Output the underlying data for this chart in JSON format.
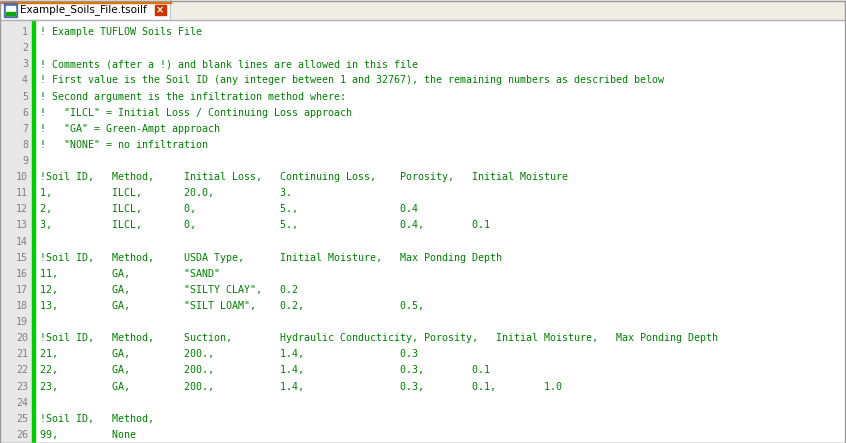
{
  "tab_title": "Example_Soils_File.tsoilf",
  "text_color": "#008000",
  "line_num_color": "#808080",
  "tab_bar_bg": "#f0ede4",
  "tab_active_bg": "#ffffff",
  "editor_bg": "#ffffff",
  "line_num_area_bg": "#e8e8e8",
  "green_bar_color": "#00cc00",
  "border_color": "#c0c0c0",
  "tab_border_color": "#e07000",
  "lines": [
    [
      1,
      "! Example TUFLOW Soils File"
    ],
    [
      2,
      ""
    ],
    [
      3,
      "! Comments (after a !) and blank lines are allowed in this file"
    ],
    [
      4,
      "! First value is the Soil ID (any integer between 1 and 32767), the remaining numbers as described below"
    ],
    [
      5,
      "! Second argument is the infiltration method where:"
    ],
    [
      6,
      "!   \"ILCL\" = Initial Loss / Continuing Loss approach"
    ],
    [
      7,
      "!   \"GA\" = Green-Ampt approach"
    ],
    [
      8,
      "!   \"NONE\" = no infiltration"
    ],
    [
      9,
      ""
    ],
    [
      10,
      "!Soil ID,   Method,     Initial Loss,   Continuing Loss,    Porosity,   Initial Moisture"
    ],
    [
      11,
      "1,          ILCL,       20.0,           3."
    ],
    [
      12,
      "2,          ILCL,       0,              5.,                 0.4"
    ],
    [
      13,
      "3,          ILCL,       0,              5.,                 0.4,        0.1"
    ],
    [
      14,
      ""
    ],
    [
      15,
      "!Soil ID,   Method,     USDA Type,      Initial Moisture,   Max Ponding Depth"
    ],
    [
      16,
      "11,         GA,         \"SAND\""
    ],
    [
      17,
      "12,         GA,         \"SILTY CLAY\",   0.2"
    ],
    [
      18,
      "13,         GA,         \"SILT LOAM\",    0.2,                0.5,"
    ],
    [
      19,
      ""
    ],
    [
      20,
      "!Soil ID,   Method,     Suction,        Hydraulic Conducticity, Porosity,   Initial Moisture,   Max Ponding Depth"
    ],
    [
      21,
      "21,         GA,         200.,           1.4,                0.3"
    ],
    [
      22,
      "22,         GA,         200.,           1.4,                0.3,        0.1"
    ],
    [
      23,
      "23,         GA,         200.,           1.4,                0.3,        0.1,        1.0"
    ],
    [
      24,
      ""
    ],
    [
      25,
      "!Soil ID,   Method,"
    ],
    [
      26,
      "99,         None"
    ]
  ]
}
